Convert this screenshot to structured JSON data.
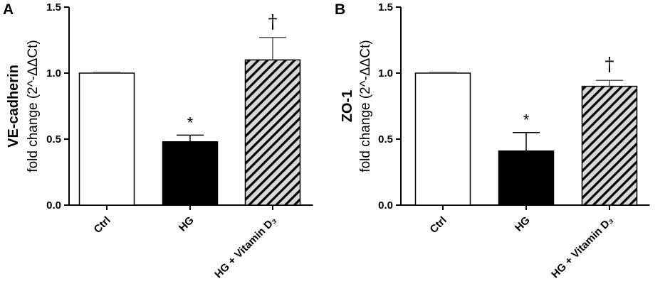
{
  "chart_data": [
    {
      "panel": "A",
      "type": "bar",
      "ylabel_bold": "VE-cadherin",
      "ylabel": "fold change (2^-ΔΔCt)",
      "ylim": [
        0,
        1.5
      ],
      "yticks": [
        "0.0",
        "0.5",
        "1.0",
        "1.5"
      ],
      "categories": [
        "Ctrl",
        "HG",
        "HG + Vitamin D₃"
      ],
      "values": [
        1.0,
        0.48,
        1.1
      ],
      "errors": [
        0.005,
        0.05,
        0.17
      ],
      "fills": [
        "white",
        "black",
        "hatched"
      ],
      "annotations": [
        "",
        "*",
        "†"
      ]
    },
    {
      "panel": "B",
      "type": "bar",
      "ylabel_bold": "ZO-1",
      "ylabel": "fold change (2^-ΔΔCt)",
      "ylim": [
        0,
        1.5
      ],
      "yticks": [
        "0.0",
        "0.5",
        "1.0",
        "1.5"
      ],
      "categories": [
        "Ctrl",
        "HG",
        "HG + Vitamin D₃"
      ],
      "values": [
        1.0,
        0.41,
        0.9
      ],
      "errors": [
        0.005,
        0.14,
        0.045
      ],
      "fills": [
        "white",
        "black",
        "hatched"
      ],
      "annotations": [
        "",
        "*",
        "†"
      ]
    }
  ],
  "colors": {
    "axis": "#000000",
    "bar_solid": "#000000",
    "bar_empty": "#ffffff",
    "hatch_bg": "#d9d9d9",
    "hatch_line": "#000000"
  }
}
